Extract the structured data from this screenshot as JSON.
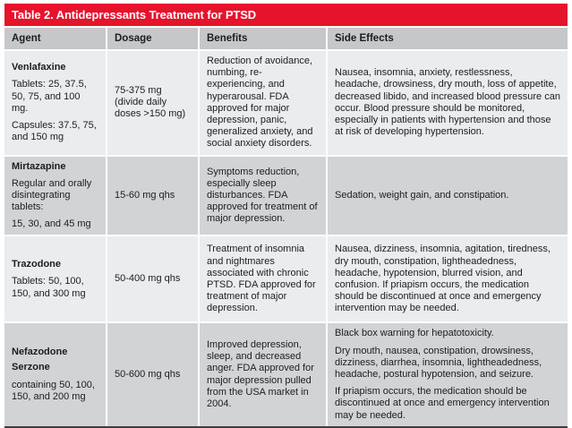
{
  "title": "Table 2. Antidepressants Treatment for PTSD",
  "columns": [
    "Agent",
    "Dosage",
    "Benefits",
    "Side Effects"
  ],
  "rows": [
    {
      "names": [
        "Venlafaxine"
      ],
      "details": [
        "Tablets: 25, 37.5, 50, 75, and 100 mg.",
        "Capsules: 37.5, 75, and 150 mg"
      ],
      "dosage": "75-375 mg (divide daily doses >150 mg)",
      "benefits": "Reduction of avoidance, numbing, re-experiencing, and hyperarousal. FDA approved for major depression, panic, generalized anxiety, and social anxiety disorders.",
      "side_effects": [
        "Nausea, insomnia, anxiety, restlessness, headache, drowsiness, dry mouth, loss of appetite, decreased libido, and increased blood pressure can occur. Blood pressure should be monitored, especially in patients with hypertension and those at risk of developing hypertension."
      ]
    },
    {
      "names": [
        "Mirtazapine"
      ],
      "details": [
        "Regular and orally disintegrating tablets:",
        "15, 30, and 45 mg"
      ],
      "dosage": "15-60 mg qhs",
      "benefits": "Symptoms reduction, especially sleep disturbances. FDA approved for treatment of major depression.",
      "side_effects": [
        "Sedation, weight gain, and constipation."
      ]
    },
    {
      "names": [
        "Trazodone"
      ],
      "details": [
        "Tablets: 50, 100, 150, and 300 mg"
      ],
      "dosage": "50-400 mg qhs",
      "benefits": "Treatment of insomnia and nightmares associated with chronic PTSD. FDA approved for treatment of major depression.",
      "side_effects": [
        "Nausea, dizziness, insomnia, agitation, tiredness, dry mouth, constipation, lightheadedness, headache, hypotension, blurred vision, and confusion. If priapism occurs, the medication should be discontinued at once and emergency intervention may be needed."
      ]
    },
    {
      "names": [
        "Nefazodone",
        "Serzone"
      ],
      "details": [
        "containing 50, 100, 150, and 200 mg"
      ],
      "dosage": "50-600 mg qhs",
      "benefits": "Improved depression, sleep, and decreased anger. FDA approved for major depression pulled from the USA market in 2004.",
      "side_effects": [
        "Black box warning for hepatotoxicity.",
        "Dry mouth, nausea, constipation, drowsiness, dizziness, diarrhea, insomnia, lightheadedness, headache, postural hypotension, and seizure.",
        "If priapism occurs, the medication should be discontinued at once and emergency intervention may be needed."
      ]
    }
  ],
  "colors": {
    "title_band_red": "#e5132b",
    "title_text": "#ffffff",
    "column_header_gray": "#c6c7c9",
    "row_light_gray": "#ebeced",
    "row_dark_gray": "#d2d3d5",
    "bottom_rule": "#3f3f41",
    "body_text": "#1d1d1f"
  }
}
